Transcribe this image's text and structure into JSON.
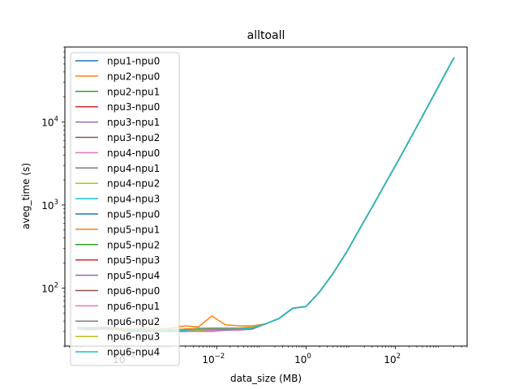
{
  "chart_data": {
    "type": "line",
    "title": "alltoall",
    "xlabel": "data_size (MB)",
    "ylabel": "aveg_time (s)",
    "x_scale": "log",
    "y_scale": "log",
    "xlim": [
      4e-06,
      4000
    ],
    "ylim": [
      20,
      80000
    ],
    "x_ticks": [
      {
        "value": 0.0001,
        "base": "10",
        "exp": "−4"
      },
      {
        "value": 0.01,
        "base": "10",
        "exp": "−2"
      },
      {
        "value": 1,
        "base": "10",
        "exp": "0"
      },
      {
        "value": 100,
        "base": "10",
        "exp": "2"
      }
    ],
    "y_ticks": [
      {
        "value": 100,
        "base": "10",
        "exp": "2"
      },
      {
        "value": 1000,
        "base": "10",
        "exp": "3"
      },
      {
        "value": 10000,
        "base": "10",
        "exp": "4"
      }
    ],
    "grid": false,
    "legend_position": "upper-left",
    "x": [
      7.6e-06,
      1.53e-05,
      3.05e-05,
      6.1e-05,
      0.000122,
      0.000244,
      0.000488,
      0.000977,
      0.00195,
      0.0039,
      0.0078,
      0.0156,
      0.03125,
      0.0625,
      0.125,
      0.25,
      0.5,
      1,
      2,
      4,
      8,
      16,
      32,
      64,
      128,
      256,
      512,
      1024,
      2048
    ],
    "series": [
      {
        "name": "npu1-npu0",
        "color": "#1f77b4",
        "values": [
          33,
          32,
          33,
          32,
          31,
          32,
          31,
          31,
          32,
          32,
          32,
          32,
          32,
          33,
          37,
          43,
          57,
          60,
          90,
          150,
          270,
          520,
          1000,
          1950,
          3800,
          7500,
          15000,
          30000,
          60000
        ]
      },
      {
        "name": "npu2-npu0",
        "color": "#ff7f0e",
        "values": [
          34,
          33,
          34,
          33,
          32,
          33,
          32,
          33,
          35,
          34,
          46,
          36,
          35,
          35,
          37,
          43,
          57,
          60,
          90,
          150,
          270,
          520,
          1000,
          1950,
          3800,
          7500,
          15000,
          30000,
          60000
        ]
      },
      {
        "name": "npu2-npu1",
        "color": "#2ca02c",
        "values": [
          32,
          32,
          33,
          31,
          31,
          31,
          31,
          30,
          31,
          31,
          32,
          32,
          32,
          33,
          37,
          43,
          57,
          60,
          90,
          150,
          270,
          520,
          1000,
          1950,
          3800,
          7500,
          15000,
          30000,
          60000
        ]
      },
      {
        "name": "npu3-npu0",
        "color": "#d62728",
        "values": [
          33,
          33,
          32,
          32,
          31,
          31,
          31,
          30,
          31,
          32,
          32,
          32,
          32,
          33,
          37,
          43,
          57,
          60,
          90,
          150,
          270,
          520,
          1000,
          1950,
          3800,
          7500,
          15000,
          30000,
          60000
        ]
      },
      {
        "name": "npu3-npu1",
        "color": "#9467bd",
        "values": [
          32,
          32,
          32,
          31,
          30,
          31,
          30,
          30,
          30,
          31,
          31,
          32,
          32,
          33,
          37,
          43,
          57,
          60,
          90,
          150,
          270,
          520,
          1000,
          1950,
          3800,
          7500,
          15000,
          30000,
          60000
        ]
      },
      {
        "name": "npu3-npu2",
        "color": "#8c564b",
        "values": [
          33,
          32,
          33,
          32,
          31,
          32,
          31,
          31,
          32,
          32,
          33,
          33,
          32,
          33,
          37,
          43,
          57,
          60,
          90,
          150,
          270,
          520,
          1000,
          1950,
          3800,
          7500,
          15000,
          30000,
          60000
        ]
      },
      {
        "name": "npu4-npu0",
        "color": "#e377c2",
        "values": [
          32,
          31,
          32,
          31,
          30,
          30,
          30,
          30,
          30,
          30,
          30,
          31,
          31,
          32,
          37,
          43,
          57,
          60,
          90,
          150,
          270,
          520,
          1000,
          1950,
          3800,
          7500,
          15000,
          30000,
          60000
        ]
      },
      {
        "name": "npu4-npu1",
        "color": "#7f7f7f",
        "values": [
          33,
          33,
          33,
          32,
          32,
          32,
          31,
          31,
          31,
          32,
          32,
          32,
          32,
          33,
          37,
          43,
          57,
          60,
          90,
          150,
          270,
          520,
          1000,
          1950,
          3800,
          7500,
          15000,
          30000,
          60000
        ]
      },
      {
        "name": "npu4-npu2",
        "color": "#bcbd22",
        "values": [
          34,
          33,
          33,
          32,
          32,
          32,
          32,
          32,
          32,
          33,
          33,
          33,
          33,
          34,
          37,
          43,
          57,
          60,
          90,
          150,
          270,
          520,
          1000,
          1950,
          3800,
          7500,
          15000,
          30000,
          60000
        ]
      },
      {
        "name": "npu4-npu3",
        "color": "#17becf",
        "values": [
          33,
          32,
          33,
          32,
          31,
          31,
          31,
          31,
          31,
          32,
          32,
          32,
          32,
          33,
          37,
          43,
          57,
          60,
          90,
          150,
          270,
          520,
          1000,
          1950,
          3800,
          7500,
          15000,
          30000,
          60000
        ]
      },
      {
        "name": "npu5-npu0",
        "color": "#1f77b4",
        "values": [
          32,
          32,
          32,
          31,
          31,
          31,
          30,
          30,
          31,
          31,
          31,
          32,
          32,
          33,
          37,
          43,
          57,
          60,
          90,
          150,
          270,
          520,
          1000,
          1950,
          3800,
          7500,
          15000,
          30000,
          60000
        ]
      },
      {
        "name": "npu5-npu1",
        "color": "#ff7f0e",
        "values": [
          33,
          33,
          32,
          32,
          31,
          31,
          31,
          31,
          32,
          32,
          33,
          33,
          33,
          33,
          37,
          43,
          57,
          60,
          90,
          150,
          270,
          520,
          1000,
          1950,
          3800,
          7500,
          15000,
          30000,
          60000
        ]
      },
      {
        "name": "npu5-npu2",
        "color": "#2ca02c",
        "values": [
          32,
          32,
          32,
          31,
          31,
          31,
          31,
          30,
          31,
          31,
          32,
          32,
          32,
          33,
          37,
          43,
          57,
          60,
          90,
          150,
          270,
          520,
          1000,
          1950,
          3800,
          7500,
          15000,
          30000,
          60000
        ]
      },
      {
        "name": "npu5-npu3",
        "color": "#d62728",
        "values": [
          33,
          32,
          32,
          32,
          31,
          31,
          31,
          31,
          31,
          32,
          32,
          32,
          32,
          33,
          37,
          43,
          57,
          60,
          90,
          150,
          270,
          520,
          1000,
          1950,
          3800,
          7500,
          15000,
          30000,
          60000
        ]
      },
      {
        "name": "npu5-npu4",
        "color": "#9467bd",
        "values": [
          32,
          32,
          32,
          31,
          30,
          30,
          30,
          30,
          30,
          31,
          31,
          31,
          32,
          32,
          37,
          43,
          57,
          60,
          90,
          150,
          270,
          520,
          1000,
          1950,
          3800,
          7500,
          15000,
          30000,
          60000
        ]
      },
      {
        "name": "npu6-npu0",
        "color": "#8c564b",
        "values": [
          33,
          33,
          33,
          32,
          31,
          31,
          31,
          31,
          31,
          32,
          32,
          32,
          32,
          33,
          37,
          43,
          57,
          60,
          90,
          150,
          270,
          520,
          1000,
          1950,
          3800,
          7500,
          15000,
          30000,
          60000
        ]
      },
      {
        "name": "npu6-npu1",
        "color": "#e377c2",
        "values": [
          32,
          32,
          32,
          31,
          31,
          31,
          30,
          30,
          30,
          31,
          31,
          32,
          32,
          33,
          37,
          43,
          57,
          60,
          90,
          150,
          270,
          520,
          1000,
          1950,
          3800,
          7500,
          15000,
          30000,
          60000
        ]
      },
      {
        "name": "npu6-npu2",
        "color": "#7f7f7f",
        "values": [
          33,
          32,
          33,
          32,
          31,
          31,
          31,
          30,
          31,
          31,
          32,
          32,
          32,
          33,
          37,
          43,
          57,
          60,
          90,
          150,
          270,
          520,
          1000,
          1950,
          3800,
          7500,
          15000,
          30000,
          60000
        ]
      },
      {
        "name": "npu6-npu3",
        "color": "#bcbd22",
        "values": [
          32,
          32,
          32,
          31,
          31,
          31,
          31,
          31,
          31,
          31,
          32,
          32,
          32,
          33,
          37,
          43,
          57,
          60,
          90,
          150,
          270,
          520,
          1000,
          1950,
          3800,
          7500,
          15000,
          30000,
          60000
        ]
      },
      {
        "name": "npu6-npu4",
        "color": "#17becf",
        "values": [
          33,
          32,
          32,
          32,
          31,
          31,
          31,
          31,
          31,
          32,
          32,
          32,
          32,
          33,
          37,
          43,
          57,
          60,
          90,
          150,
          270,
          520,
          1000,
          1950,
          3800,
          7500,
          15000,
          30000,
          60000
        ]
      }
    ]
  }
}
